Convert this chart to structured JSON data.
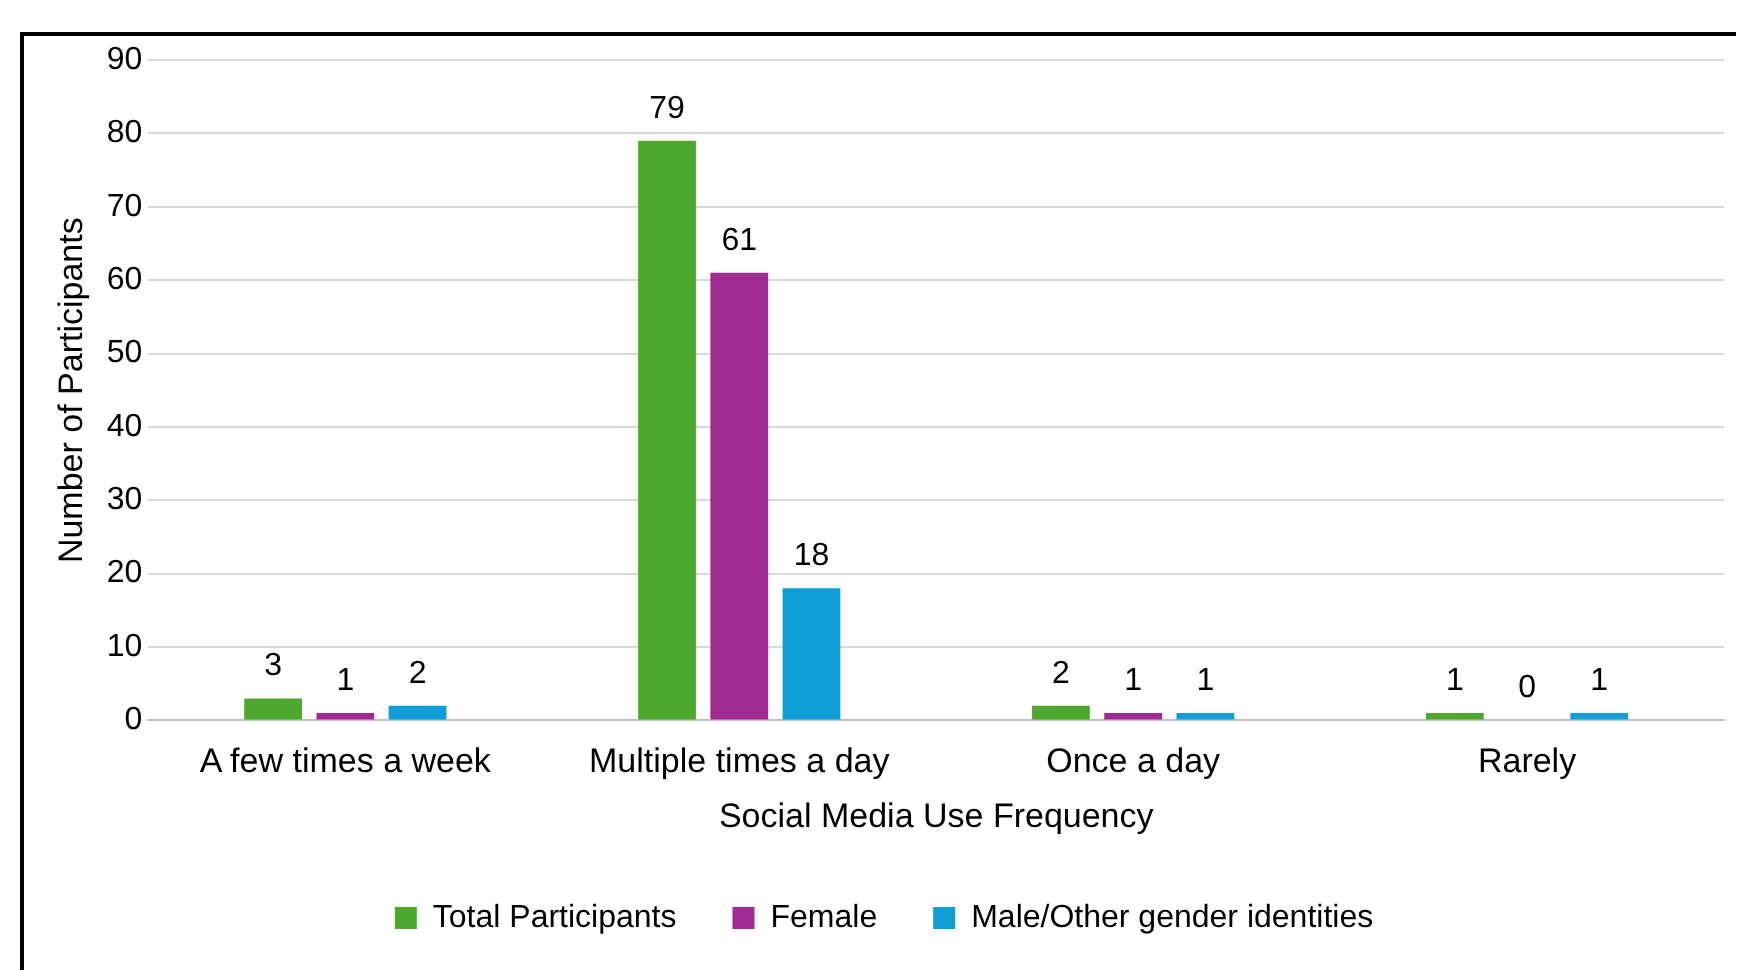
{
  "chart_data": {
    "type": "bar",
    "xlabel": "Social Media Use Frequency",
    "ylabel": "Number of Participants",
    "categories": [
      "A few times a week",
      "Multiple times a day",
      "Once a day",
      "Rarely"
    ],
    "series": [
      {
        "name": "Total Participants",
        "color": "#4ea72e",
        "values": [
          3,
          79,
          2,
          1
        ]
      },
      {
        "name": "Female",
        "color": "#a02b93",
        "values": [
          1,
          61,
          1,
          0
        ]
      },
      {
        "name": "Male/Other gender identities",
        "color": "#0f9ed5",
        "values": [
          2,
          18,
          1,
          1
        ]
      }
    ],
    "ylim": [
      0,
      90
    ],
    "yticks": [
      0,
      10,
      20,
      30,
      40,
      50,
      60,
      70,
      80,
      90
    ],
    "grid": "y",
    "legend": "bottom",
    "data_labels": true
  }
}
